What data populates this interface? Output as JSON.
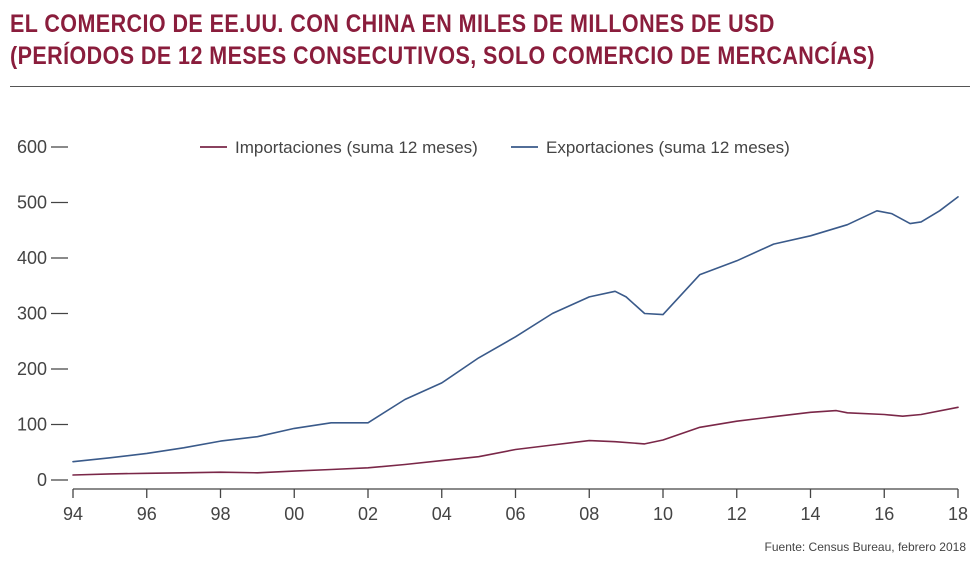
{
  "title": {
    "line1": "EL COMERCIO DE EE.UU. CON CHINA EN MILES DE MILLONES DE USD",
    "line2": "(PERÍODOS DE 12 MESES CONSECUTIVOS, SOLO COMERCIO DE MERCANCÍAS)"
  },
  "source": "Fuente: Census Bureau, febrero 2018",
  "colors": {
    "title": "#8a1d3c",
    "importaciones": "#7a2748",
    "exportaciones": "#3a5a8a",
    "axis": "#444444"
  },
  "chart_data": {
    "type": "line",
    "title": "",
    "xlabel": "",
    "ylabel": "",
    "xlim": [
      1994,
      2018
    ],
    "ylim": [
      0,
      600
    ],
    "grid": false,
    "legend_position": "top",
    "x_ticks": [
      1994,
      1996,
      1998,
      2000,
      2002,
      2004,
      2006,
      2008,
      2010,
      2012,
      2014,
      2016,
      2018
    ],
    "x_tick_labels": [
      "94",
      "96",
      "98",
      "00",
      "02",
      "04",
      "06",
      "08",
      "10",
      "12",
      "14",
      "16",
      "18"
    ],
    "y_ticks": [
      0,
      100,
      200,
      300,
      400,
      500,
      600
    ],
    "y_tick_labels": [
      "0",
      "100",
      "200",
      "300",
      "400",
      "500",
      "600"
    ],
    "series": [
      {
        "name": "Importaciones (suma 12 meses)",
        "x": [
          1994,
          1995,
          1996,
          1997,
          1998,
          1999,
          2000,
          2001,
          2002,
          2003,
          2004,
          2005,
          2006,
          2007,
          2008,
          2008.7,
          2009.5,
          2010,
          2011,
          2012,
          2013,
          2014,
          2014.7,
          2015,
          2016,
          2016.5,
          2017,
          2018
        ],
        "y": [
          9,
          11,
          12,
          13,
          14,
          13,
          16,
          19,
          22,
          28,
          35,
          42,
          55,
          63,
          71,
          69,
          65,
          72,
          95,
          106,
          114,
          122,
          125,
          121,
          118,
          115,
          118,
          131
        ]
      },
      {
        "name": "Exportaciones (suma 12 meses)",
        "x": [
          1994,
          1995,
          1996,
          1997,
          1998,
          1999,
          2000,
          2001,
          2002,
          2003,
          2004,
          2005,
          2006,
          2007,
          2008,
          2008.7,
          2009,
          2009.5,
          2010,
          2011,
          2012,
          2013,
          2014,
          2015,
          2015.8,
          2016.2,
          2016.7,
          2017,
          2017.5,
          2018
        ],
        "y": [
          33,
          40,
          48,
          58,
          70,
          78,
          93,
          103,
          103,
          145,
          175,
          220,
          258,
          300,
          330,
          340,
          330,
          300,
          298,
          370,
          395,
          425,
          440,
          460,
          485,
          480,
          462,
          465,
          485,
          510
        ]
      }
    ]
  }
}
